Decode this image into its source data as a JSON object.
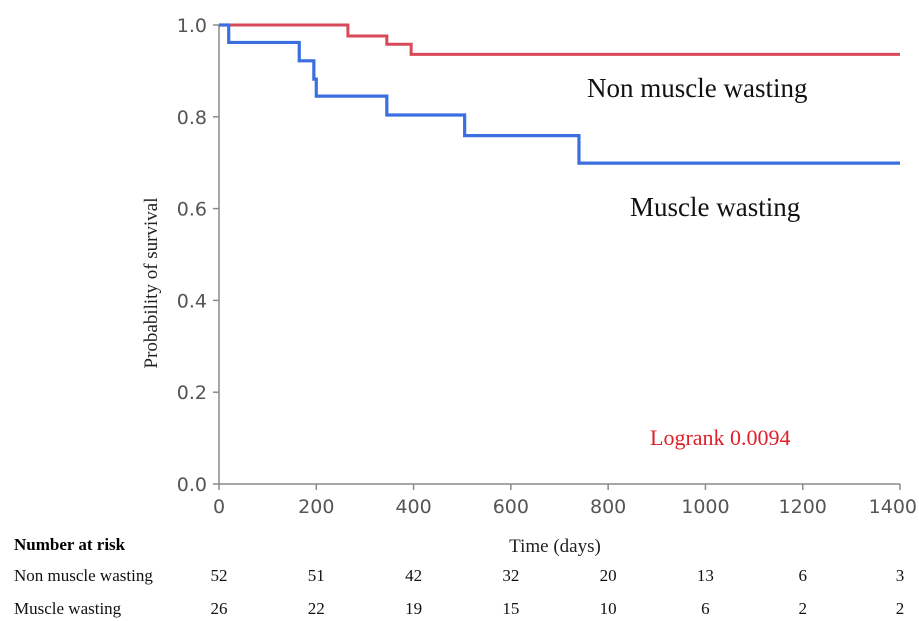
{
  "chart_data": {
    "type": "line",
    "ylabel": "Probability of survival",
    "xlabel": "Time (days)",
    "xlim": [
      0,
      1400
    ],
    "ylim": [
      0,
      1.0
    ],
    "x_ticks": [
      "0",
      "200",
      "400",
      "600",
      "800",
      "1000",
      "1200",
      "1400"
    ],
    "y_ticks": [
      "0.0",
      "0.2",
      "0.4",
      "0.6",
      "0.8",
      "1.0"
    ],
    "grid": false,
    "series": [
      {
        "name": "Non muscle wasting",
        "color": "#d9495a",
        "steps": [
          [
            0,
            1.0
          ],
          [
            265,
            0.976
          ],
          [
            345,
            0.958
          ],
          [
            395,
            0.936
          ],
          [
            1400,
            0.936
          ]
        ]
      },
      {
        "name": "Muscle wasting",
        "color": "#3b6fe0",
        "steps": [
          [
            0,
            1.0
          ],
          [
            20,
            0.962
          ],
          [
            165,
            0.922
          ],
          [
            195,
            0.882
          ],
          [
            200,
            0.845
          ],
          [
            345,
            0.804
          ],
          [
            505,
            0.759
          ],
          [
            740,
            0.699
          ],
          [
            1400,
            0.699
          ]
        ]
      }
    ],
    "annotations": {
      "logrank": "Logrank 0.0094",
      "logrank_color": "#e0202a"
    },
    "risk_table": {
      "title": "Number at risk",
      "rows": [
        {
          "label": "Non muscle wasting",
          "values": [
            "52",
            "51",
            "42",
            "32",
            "20",
            "13",
            "6",
            "3"
          ]
        },
        {
          "label": "Muscle wasting",
          "values": [
            "26",
            "22",
            "19",
            "15",
            "10",
            "6",
            "2",
            "2"
          ]
        }
      ]
    }
  }
}
